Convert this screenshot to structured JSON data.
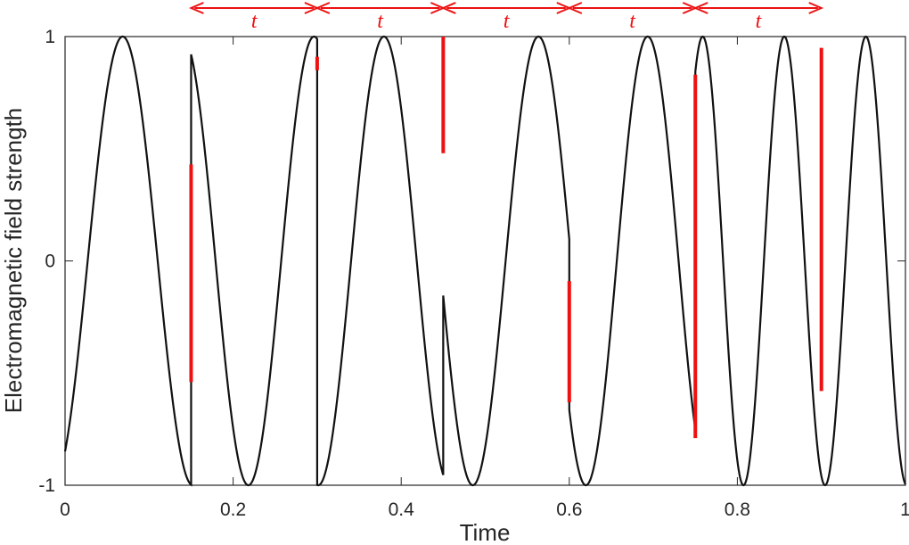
{
  "chart_data": {
    "type": "line",
    "xlabel": "Time",
    "ylabel": "Electromagnetic field strength",
    "xlim": [
      0,
      1
    ],
    "ylim": [
      -1,
      1
    ],
    "xticks": [
      0,
      0.2,
      0.4,
      0.6,
      0.8,
      1
    ],
    "xtick_labels": [
      "0",
      "0.2",
      "0.4",
      "0.6",
      "0.8",
      "1"
    ],
    "yticks": [
      -1,
      0,
      1
    ],
    "ytick_labels": [
      "-1",
      "0",
      "1"
    ],
    "grid": false,
    "box": true,
    "segments": [
      {
        "x_start": 0.0,
        "x_end": 0.15,
        "frequency": 6.0,
        "phase_deg": -58.1
      },
      {
        "x_start": 0.15,
        "x_end": 0.3,
        "frequency": 6.4,
        "phase_deg": -232.6
      },
      {
        "x_start": 0.3,
        "x_end": 0.45,
        "frequency": 6.4,
        "phase_deg": -64.2
      },
      {
        "x_start": 0.45,
        "x_end": 0.6,
        "frequency": 6.4,
        "phase_deg": -127.9
      },
      {
        "x_start": 0.6,
        "x_end": 0.75,
        "frequency": 6.8,
        "phase_deg": -167.2
      },
      {
        "x_start": 0.75,
        "x_end": 1.0,
        "frequency": 10.3,
        "phase_deg": -203.5
      }
    ],
    "phase_jumps": [
      {
        "x": 0.15,
        "y_from": -0.54,
        "y_to": 0.43
      },
      {
        "x": 0.3,
        "y_from": 0.85,
        "y_to": 0.91
      },
      {
        "x": 0.45,
        "y_from": 0.48,
        "y_to": 1.0
      },
      {
        "x": 0.6,
        "y_from": -0.63,
        "y_to": -0.09
      },
      {
        "x": 0.75,
        "y_from": -0.79,
        "y_to": 0.83
      },
      {
        "x": 0.9,
        "y_from": -0.58,
        "y_to": 0.95
      }
    ],
    "intervals": [
      {
        "x_start": 0.15,
        "x_end": 0.3,
        "label": "t"
      },
      {
        "x_start": 0.3,
        "x_end": 0.45,
        "label": "t"
      },
      {
        "x_start": 0.45,
        "x_end": 0.6,
        "label": "t"
      },
      {
        "x_start": 0.6,
        "x_end": 0.75,
        "label": "t"
      },
      {
        "x_start": 0.75,
        "x_end": 0.9,
        "label": "t"
      }
    ],
    "colors": {
      "signal": "#111111",
      "jump": "#ee1111",
      "interval": "#ee1111",
      "axes": "#262626"
    }
  }
}
